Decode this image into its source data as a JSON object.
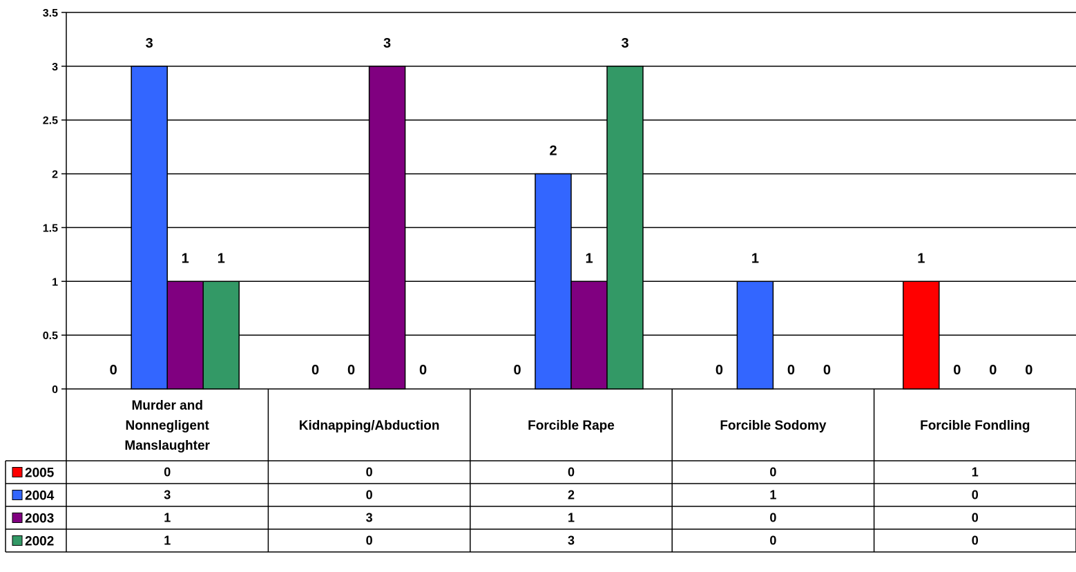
{
  "chart_data": {
    "type": "bar",
    "title": "",
    "xlabel": "",
    "ylabel": "",
    "categories": [
      [
        "Murder and",
        "Nonnegligent",
        "Manslaughter"
      ],
      [
        "Kidnapping/Abduction"
      ],
      [
        "Forcible Rape"
      ],
      [
        "Forcible Sodomy"
      ],
      [
        "Forcible Fondling"
      ]
    ],
    "series": [
      {
        "name": "2005",
        "color": "#ff0000",
        "values": [
          0,
          0,
          0,
          0,
          1
        ]
      },
      {
        "name": "2004",
        "color": "#3366ff",
        "values": [
          3,
          0,
          2,
          1,
          0
        ]
      },
      {
        "name": "2003",
        "color": "#800080",
        "values": [
          1,
          3,
          1,
          0,
          0
        ]
      },
      {
        "name": "2002",
        "color": "#339966",
        "values": [
          1,
          0,
          3,
          0,
          0
        ]
      }
    ],
    "ylim": [
      0,
      3.5
    ],
    "yticks": [
      "0",
      "0.5",
      "1",
      "1.5",
      "2",
      "2.5",
      "3",
      "3.5"
    ],
    "grid": true,
    "legend": "data-table-left"
  }
}
